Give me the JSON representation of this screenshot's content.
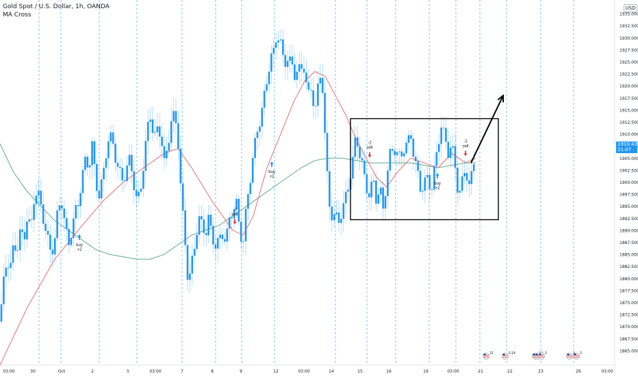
{
  "legend": {
    "symbol": "Gold Spot / U.S. Dollar, 1h, OANDA",
    "indicator": "MA Cross"
  },
  "currency_badge": "USD",
  "last_price": {
    "value": "1910.434",
    "countdown": "21:07"
  },
  "colors": {
    "candle": "#2196f3",
    "ma_fast": "#f06a6a",
    "ma_slow": "#5fa88a",
    "grid_vertical": "#2196f3",
    "box": "#000000",
    "signal_buy": "#2196f3",
    "signal_sell": "#e53935"
  },
  "chart_data": {
    "type": "candlestick",
    "title": "Gold Spot / U.S. Dollar, 1h, OANDA",
    "ylim": [
      1862,
      1937
    ],
    "y_ticks": [
      1865,
      1867.5,
      1870,
      1872.5,
      1875,
      1877.5,
      1880,
      1882.5,
      1885,
      1887.5,
      1890,
      1892.5,
      1895,
      1897.5,
      1900,
      1902.5,
      1905,
      1907.5,
      1910,
      1912.5,
      1915,
      1917.5,
      1920,
      1922.5,
      1925,
      1927.5,
      1930,
      1932.5,
      1935
    ],
    "x_ticks": [
      "03:00",
      "30",
      "Oct",
      "2",
      "5",
      "03:00",
      "7",
      "8",
      "9",
      "12",
      "03:00",
      "14",
      "15",
      "16",
      "19",
      "03:00",
      "21",
      "22",
      "23",
      "26",
      "03:00"
    ],
    "series": [
      {
        "name": "Price",
        "kind": "close_path",
        "points": [
          [
            0,
            1871
          ],
          [
            5,
            1879
          ],
          [
            10,
            1884
          ],
          [
            15,
            1882
          ],
          [
            20,
            1887
          ],
          [
            25,
            1886
          ],
          [
            30,
            1890
          ],
          [
            35,
            1888
          ],
          [
            40,
            1893
          ],
          [
            45,
            1890
          ],
          [
            50,
            1897
          ],
          [
            55,
            1898
          ],
          [
            60,
            1895
          ],
          [
            65,
            1891
          ],
          [
            70,
            1888
          ],
          [
            75,
            1885
          ],
          [
            80,
            1888
          ],
          [
            85,
            1895
          ],
          [
            90,
            1896
          ],
          [
            95,
            1891
          ],
          [
            100,
            1887
          ],
          [
            105,
            1890
          ],
          [
            110,
            1894
          ],
          [
            115,
            1896
          ],
          [
            120,
            1901
          ],
          [
            125,
            1905
          ],
          [
            130,
            1903
          ],
          [
            135,
            1908
          ],
          [
            140,
            1900
          ],
          [
            145,
            1897
          ],
          [
            150,
            1901
          ],
          [
            155,
            1906
          ],
          [
            160,
            1910
          ],
          [
            165,
            1908
          ],
          [
            170,
            1904
          ],
          [
            175,
            1902
          ],
          [
            180,
            1900
          ],
          [
            185,
            1903
          ],
          [
            190,
            1905
          ],
          [
            195,
            1900
          ],
          [
            200,
            1896
          ],
          [
            205,
            1898
          ],
          [
            210,
            1904
          ],
          [
            215,
            1911
          ],
          [
            220,
            1914
          ],
          [
            225,
            1909
          ],
          [
            230,
            1911
          ],
          [
            235,
            1910
          ],
          [
            240,
            1904
          ],
          [
            245,
            1907
          ],
          [
            250,
            1913
          ],
          [
            255,
            1914
          ],
          [
            260,
            1909
          ],
          [
            265,
            1897
          ],
          [
            270,
            1888
          ],
          [
            275,
            1879
          ],
          [
            280,
            1883
          ],
          [
            285,
            1887
          ],
          [
            290,
            1893
          ],
          [
            295,
            1891
          ],
          [
            300,
            1889
          ],
          [
            305,
            1893
          ],
          [
            310,
            1888
          ],
          [
            315,
            1887
          ],
          [
            320,
            1888
          ],
          [
            325,
            1889
          ],
          [
            330,
            1888
          ],
          [
            335,
            1892
          ],
          [
            340,
            1894
          ],
          [
            345,
            1896
          ],
          [
            350,
            1890
          ],
          [
            355,
            1887
          ],
          [
            360,
            1895
          ],
          [
            365,
            1900
          ],
          [
            370,
            1906
          ],
          [
            375,
            1910
          ],
          [
            380,
            1913
          ],
          [
            385,
            1917
          ],
          [
            390,
            1921
          ],
          [
            395,
            1926
          ],
          [
            400,
            1927
          ],
          [
            405,
            1931
          ],
          [
            410,
            1929
          ],
          [
            415,
            1924
          ],
          [
            420,
            1926
          ],
          [
            425,
            1925
          ],
          [
            430,
            1922
          ],
          [
            435,
            1924
          ],
          [
            440,
            1923
          ],
          [
            445,
            1924
          ],
          [
            450,
            1918
          ],
          [
            455,
            1919
          ],
          [
            460,
            1915
          ],
          [
            465,
            1920
          ],
          [
            470,
            1923
          ],
          [
            475,
            1909
          ],
          [
            480,
            1896
          ],
          [
            485,
            1893
          ],
          [
            490,
            1893
          ],
          [
            495,
            1892
          ],
          [
            500,
            1894
          ],
          [
            505,
            1897
          ],
          [
            510,
            1900
          ],
          [
            515,
            1904
          ],
          [
            520,
            1910
          ],
          [
            525,
            1906
          ],
          [
            530,
            1903
          ],
          [
            535,
            1899
          ],
          [
            540,
            1897
          ],
          [
            545,
            1901
          ],
          [
            550,
            1896
          ],
          [
            555,
            1899
          ],
          [
            560,
            1894
          ],
          [
            565,
            1901
          ],
          [
            570,
            1906
          ],
          [
            575,
            1907
          ],
          [
            580,
            1906
          ],
          [
            585,
            1905
          ],
          [
            590,
            1907
          ],
          [
            595,
            1908
          ],
          [
            600,
            1910
          ],
          [
            605,
            1905
          ],
          [
            610,
            1902
          ],
          [
            615,
            1898
          ],
          [
            620,
            1900
          ],
          [
            625,
            1901
          ],
          [
            630,
            1898
          ],
          [
            635,
            1903
          ],
          [
            640,
            1908
          ],
          [
            645,
            1912
          ],
          [
            650,
            1909
          ],
          [
            655,
            1906
          ],
          [
            660,
            1908
          ],
          [
            665,
            1903
          ],
          [
            670,
            1897
          ],
          [
            675,
            1900
          ],
          [
            680,
            1903
          ],
          [
            685,
            1899
          ],
          [
            690,
            1902
          ],
          [
            695,
            1907
          ]
        ]
      },
      {
        "name": "MA fast",
        "kind": "line",
        "points": [
          [
            0,
            1862
          ],
          [
            40,
            1874
          ],
          [
            80,
            1884
          ],
          [
            120,
            1891
          ],
          [
            150,
            1896
          ],
          [
            180,
            1900
          ],
          [
            210,
            1903
          ],
          [
            240,
            1906
          ],
          [
            260,
            1907
          ],
          [
            280,
            1903
          ],
          [
            310,
            1896
          ],
          [
            340,
            1890
          ],
          [
            355,
            1889
          ],
          [
            370,
            1893
          ],
          [
            390,
            1903
          ],
          [
            410,
            1910
          ],
          [
            430,
            1917
          ],
          [
            445,
            1921
          ],
          [
            460,
            1923
          ],
          [
            475,
            1922
          ],
          [
            490,
            1918
          ],
          [
            505,
            1914
          ],
          [
            520,
            1909
          ],
          [
            535,
            1905
          ],
          [
            550,
            1901
          ],
          [
            565,
            1899
          ],
          [
            580,
            1902
          ],
          [
            600,
            1905
          ],
          [
            620,
            1904
          ],
          [
            640,
            1903
          ],
          [
            660,
            1906
          ],
          [
            680,
            1904
          ],
          [
            695,
            1905
          ]
        ]
      },
      {
        "name": "MA slow",
        "kind": "line",
        "points": [
          [
            0,
            1908
          ],
          [
            20,
            1902
          ],
          [
            40,
            1898
          ],
          [
            60,
            1895
          ],
          [
            80,
            1892
          ],
          [
            100,
            1890
          ],
          [
            120,
            1888
          ],
          [
            140,
            1886
          ],
          [
            160,
            1885
          ],
          [
            180,
            1884.5
          ],
          [
            200,
            1884
          ],
          [
            220,
            1884
          ],
          [
            240,
            1885
          ],
          [
            260,
            1887
          ],
          [
            280,
            1889
          ],
          [
            300,
            1890
          ],
          [
            320,
            1891
          ],
          [
            340,
            1893
          ],
          [
            360,
            1895
          ],
          [
            380,
            1897
          ],
          [
            400,
            1899
          ],
          [
            420,
            1901
          ],
          [
            440,
            1903
          ],
          [
            460,
            1904.5
          ],
          [
            480,
            1905
          ],
          [
            500,
            1905
          ],
          [
            520,
            1904.5
          ],
          [
            540,
            1904
          ],
          [
            560,
            1904
          ],
          [
            580,
            1904
          ],
          [
            600,
            1904
          ],
          [
            620,
            1903.5
          ],
          [
            640,
            1903
          ],
          [
            660,
            1903.5
          ],
          [
            680,
            1904
          ],
          [
            695,
            1904
          ]
        ]
      }
    ],
    "signals": [
      {
        "type": "buy",
        "x": 116,
        "label1": "buy",
        "label2": "+2"
      },
      {
        "type": "sell",
        "x": 343,
        "label1": "-2",
        "label2": "sell"
      },
      {
        "type": "buy",
        "x": 397,
        "label1": "buy",
        "label2": "+2"
      },
      {
        "type": "sell",
        "x": 540,
        "label1": "-2",
        "label2": "sell"
      },
      {
        "type": "buy",
        "x": 639,
        "label1": "buy",
        "label2": "+2"
      },
      {
        "type": "sell",
        "x": 680,
        "label1": "-2",
        "label2": "sell"
      }
    ],
    "events": [
      "12",
      "0.14",
      "3",
      "1",
      "3",
      "3",
      "3"
    ],
    "annotations": {
      "box": {
        "x0": 512,
        "x1": 728,
        "y_top": 1913.2,
        "y_bottom": 1892.2
      },
      "arrow": {
        "from_x": 688,
        "from_y": 1904,
        "to_x": 735,
        "to_y": 1918
      }
    }
  }
}
